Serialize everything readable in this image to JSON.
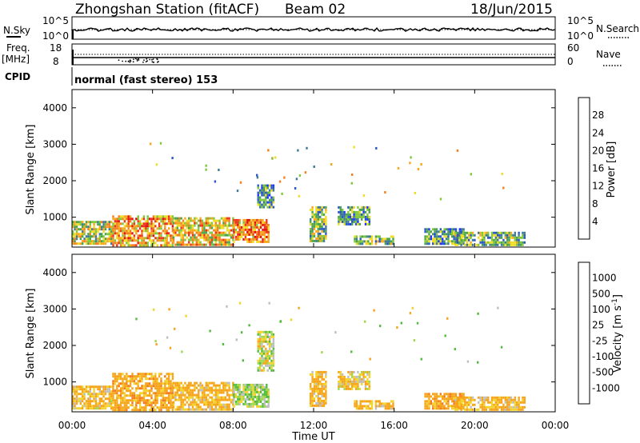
{
  "header": {
    "station": "Zhongshan Station (fitACF)",
    "beam": "Beam 02",
    "date": "18/Jun/2015"
  },
  "aux_panels": {
    "nsky_label": "N.Sky",
    "nsky_ticks": [
      "10^5",
      "10^0"
    ],
    "nsearch_label": "N.Search",
    "nsearch_ticks": [
      "10^5",
      "10^0"
    ],
    "freq_label": "Freq.",
    "freq_unit": "[MHz]",
    "freq_ticks": [
      "18",
      "8"
    ],
    "nave_label": "Nave",
    "nave_ticks": [
      "60",
      "0"
    ],
    "cpid_label": "CPID",
    "cpid_value": "normal (fast stereo) 153"
  },
  "chart_data": [
    {
      "type": "heatmap",
      "panel": "power",
      "ylabel": "Slant Range [km]",
      "y_ticks": [
        "1000",
        "2000",
        "3000",
        "4000"
      ],
      "ylim": [
        180,
        4500
      ],
      "xlim": [
        0,
        24
      ],
      "colorbar": {
        "label": "Power [dB]",
        "ticks": [
          "4",
          "8",
          "12",
          "16",
          "20",
          "24",
          "28"
        ],
        "colors": [
          "#1e32ff",
          "#2a57c8",
          "#3f7b99",
          "#4ba34b",
          "#7ec83a",
          "#f0dd23",
          "#f7a81a",
          "#f57f1e",
          "#ee3518",
          "#e51010"
        ],
        "range": [
          0,
          30
        ]
      },
      "regions": [
        {
          "t0": 0.0,
          "t1": 2.0,
          "r0": 250,
          "r1": 900,
          "level": 15
        },
        {
          "t0": 2.0,
          "t1": 5.0,
          "r0": 250,
          "r1": 1050,
          "level": 20
        },
        {
          "t0": 5.0,
          "t1": 8.0,
          "r0": 250,
          "r1": 1000,
          "level": 18
        },
        {
          "t0": 8.0,
          "t1": 9.8,
          "r0": 300,
          "r1": 950,
          "level": 22
        },
        {
          "t0": 9.2,
          "t1": 10.0,
          "r0": 1300,
          "r1": 1900,
          "level": 9
        },
        {
          "t0": 11.8,
          "t1": 12.6,
          "r0": 350,
          "r1": 1300,
          "level": 13
        },
        {
          "t0": 13.2,
          "t1": 14.8,
          "r0": 800,
          "r1": 1300,
          "level": 9
        },
        {
          "t0": 14.0,
          "t1": 16.0,
          "r0": 250,
          "r1": 500,
          "level": 12
        },
        {
          "t0": 17.5,
          "t1": 19.5,
          "r0": 250,
          "r1": 700,
          "level": 10
        },
        {
          "t0": 19.0,
          "t1": 22.5,
          "r0": 250,
          "r1": 600,
          "level": 11
        }
      ]
    },
    {
      "type": "heatmap",
      "panel": "velocity",
      "ylabel": "Slant Range [km]",
      "xlabel": "Time UT",
      "x_ticks": [
        "00:00",
        "04:00",
        "08:00",
        "12:00",
        "16:00",
        "20:00",
        "00:00"
      ],
      "y_ticks": [
        "1000",
        "2000",
        "3000",
        "4000"
      ],
      "ylim": [
        180,
        4500
      ],
      "xlim": [
        0,
        24
      ],
      "colorbar": {
        "label": "Velocity [m s^-1]",
        "ticks": [
          "1000",
          "500",
          "100",
          "25",
          "-25",
          "-100",
          "-500",
          "-1000"
        ],
        "colors": [
          "#1f3fd0",
          "#2a6abf",
          "#3b8b7a",
          "#55bb40",
          "#9fd84a",
          "#bebebe",
          "#f3d22a",
          "#f6a51a",
          "#f47a1e",
          "#ee4a18",
          "#e51010"
        ]
      },
      "regions": [
        {
          "t0": 0.0,
          "t1": 2.0,
          "r0": 250,
          "r1": 900,
          "level": -120
        },
        {
          "t0": 2.0,
          "t1": 5.0,
          "r0": 250,
          "r1": 1250,
          "level": -200
        },
        {
          "t0": 5.0,
          "t1": 8.0,
          "r0": 250,
          "r1": 1000,
          "level": -150
        },
        {
          "t0": 8.0,
          "t1": 9.8,
          "r0": 300,
          "r1": 950,
          "level": 60
        },
        {
          "t0": 9.2,
          "t1": 10.0,
          "r0": 1300,
          "r1": 2400,
          "level": 0
        },
        {
          "t0": 11.8,
          "t1": 12.6,
          "r0": 350,
          "r1": 1300,
          "level": -150
        },
        {
          "t0": 13.2,
          "t1": 14.8,
          "r0": 800,
          "r1": 1300,
          "level": -100
        },
        {
          "t0": 14.0,
          "t1": 16.0,
          "r0": 250,
          "r1": 500,
          "level": -150
        },
        {
          "t0": 17.5,
          "t1": 19.5,
          "r0": 250,
          "r1": 700,
          "level": -200
        },
        {
          "t0": 19.0,
          "t1": 22.5,
          "r0": 250,
          "r1": 600,
          "level": -150
        }
      ]
    }
  ]
}
